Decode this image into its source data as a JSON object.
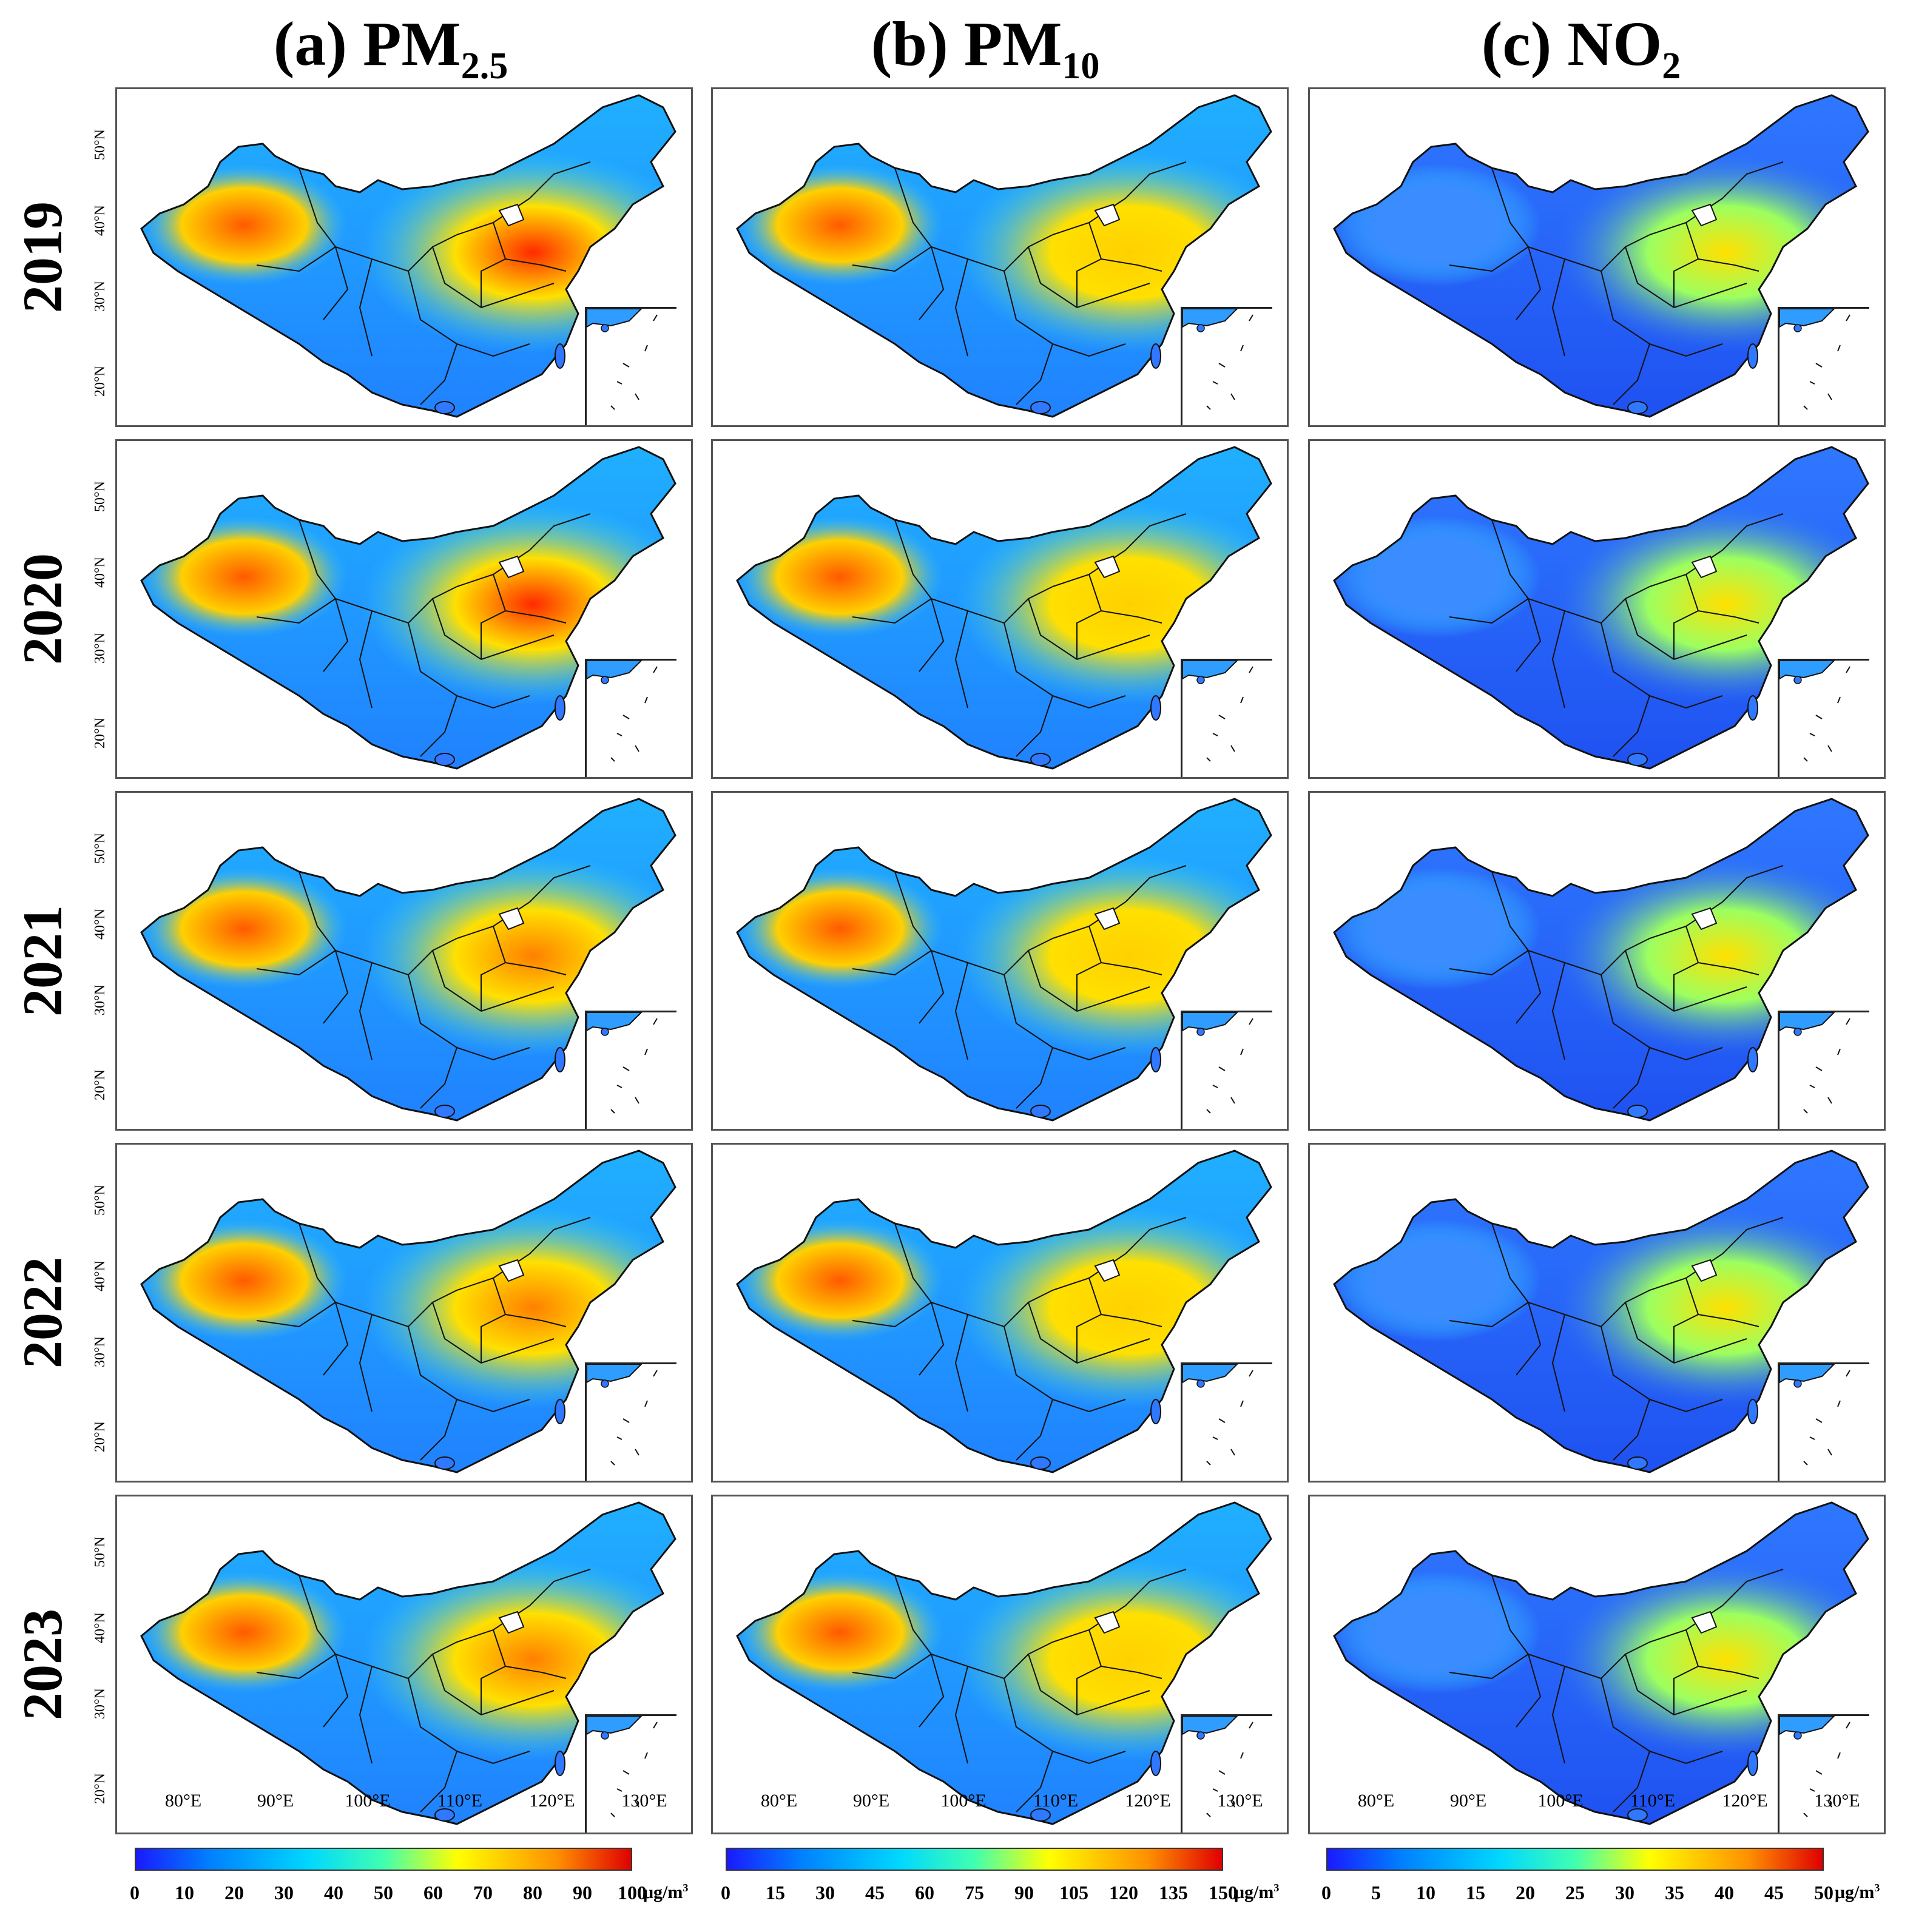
{
  "columns": [
    {
      "id": "pm25",
      "label_main": "(a) PM",
      "label_sub": "2.5",
      "ticks": [
        "0",
        "10",
        "20",
        "30",
        "40",
        "50",
        "60",
        "70",
        "80",
        "90",
        "100"
      ],
      "unit": "μg/m",
      "unit_sup": "3"
    },
    {
      "id": "pm10",
      "label_main": "(b) PM",
      "label_sub": "10",
      "ticks": [
        "0",
        "15",
        "30",
        "45",
        "60",
        "75",
        "90",
        "105",
        "120",
        "135",
        "150"
      ],
      "unit": "μg/m",
      "unit_sup": "3"
    },
    {
      "id": "no2",
      "label_main": "(c) NO",
      "label_sub": "2",
      "ticks": [
        "0",
        "5",
        "10",
        "15",
        "20",
        "25",
        "30",
        "35",
        "40",
        "45",
        "50"
      ],
      "unit": "μg/m",
      "unit_sup": "3"
    }
  ],
  "rows": [
    "2019",
    "2020",
    "2021",
    "2022",
    "2023"
  ],
  "latitude_labels": [
    "50°N",
    "40°N",
    "30°N",
    "20°N"
  ],
  "longitude_labels": [
    "80°E",
    "90°E",
    "100°E",
    "110°E",
    "120°E",
    "130°E"
  ],
  "colors": {
    "low": "#1e3cff",
    "mid_low": "#00c8ff",
    "mid": "#7fff7f",
    "mid_high": "#ffff00",
    "high": "#ff7000",
    "max": "#e00000"
  }
}
